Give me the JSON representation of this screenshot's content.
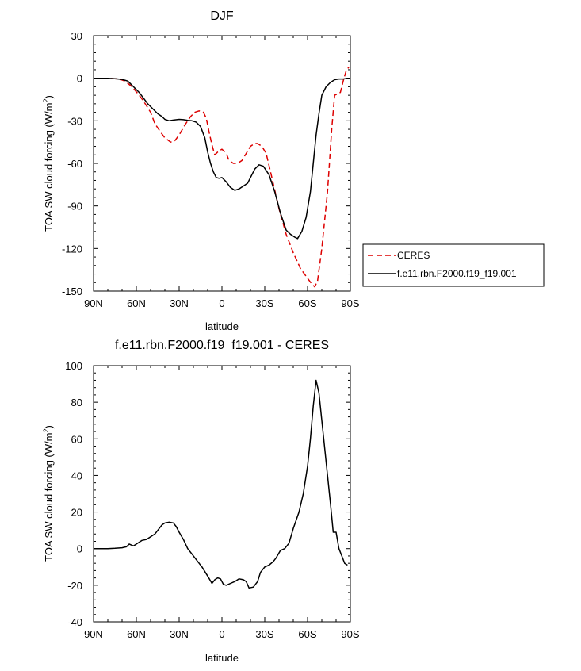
{
  "chart_data": [
    {
      "type": "line",
      "title": "DJF",
      "xlabel": "latitude",
      "ylabel": "TOA SW cloud forcing (W/m",
      "ylabel_sup": "2",
      "ylabel_end": ")",
      "xlim": [
        90,
        -90
      ],
      "ylim": [
        -150,
        30
      ],
      "xticks": [
        90,
        60,
        30,
        0,
        -30,
        -60,
        -90
      ],
      "xtick_labels": [
        "90N",
        "60N",
        "30N",
        "0",
        "30S",
        "60S",
        "90S"
      ],
      "yticks": [
        -150,
        -120,
        -90,
        -60,
        -30,
        0,
        30
      ],
      "ytick_labels": [
        "-150",
        "-120",
        "-90",
        "-60",
        "-30",
        "0",
        "30"
      ],
      "series": [
        {
          "name": "CERES",
          "color": "#dd0000",
          "dash": true,
          "x": [
            90,
            80,
            72,
            68,
            63,
            58,
            55,
            50,
            47,
            43,
            40,
            36,
            33,
            30,
            26,
            22,
            19,
            16,
            13,
            11,
            9,
            7,
            5,
            3,
            0,
            -1,
            -3,
            -5,
            -8,
            -11,
            -14,
            -17,
            -20,
            -23,
            -25,
            -28,
            -31,
            -35,
            -40,
            -45,
            -50,
            -55,
            -60,
            -63,
            -65,
            -67,
            -70,
            -74,
            -77,
            -79,
            -81,
            -83,
            -85,
            -87,
            -89
          ],
          "values": [
            0,
            0,
            -0.5,
            -2,
            -6,
            -12,
            -16,
            -24,
            -32,
            -38,
            -42,
            -45,
            -44,
            -40,
            -33,
            -27,
            -24,
            -23,
            -24,
            -28,
            -38,
            -47,
            -54,
            -52,
            -50,
            -51,
            -53,
            -58,
            -60,
            -60,
            -58,
            -53,
            -48,
            -46,
            -46,
            -48,
            -53,
            -70,
            -92,
            -110,
            -123,
            -134,
            -141,
            -145,
            -147,
            -143,
            -120,
            -80,
            -35,
            -12,
            -11,
            -10,
            -2,
            5,
            8
          ]
        },
        {
          "name": "f.e11.rbn.F2000.f19_f19.001",
          "color": "#000000",
          "dash": false,
          "x": [
            90,
            80,
            75,
            70,
            66,
            62,
            58,
            55,
            52,
            48,
            45,
            42,
            40,
            37,
            34,
            30,
            27,
            24,
            21,
            18,
            15,
            12,
            10,
            8,
            6,
            4,
            2,
            0,
            -3,
            -6,
            -9,
            -12,
            -15,
            -18,
            -21,
            -23,
            -26,
            -29,
            -33,
            -37,
            -41,
            -45,
            -48,
            -51,
            -53,
            -56,
            -59,
            -62,
            -64,
            -66,
            -68,
            -70,
            -73,
            -76,
            -79,
            -82,
            -85,
            -88,
            -90
          ],
          "values": [
            0,
            0,
            -0.3,
            -0.8,
            -2,
            -6,
            -10,
            -14,
            -18,
            -22,
            -25,
            -27,
            -29,
            -30,
            -29.5,
            -29,
            -29.2,
            -29.7,
            -30,
            -31,
            -34,
            -42,
            -52,
            -60,
            -66,
            -70,
            -70.5,
            -70,
            -73,
            -77,
            -79,
            -78,
            -76,
            -74,
            -68,
            -64,
            -61,
            -62,
            -68,
            -80,
            -95,
            -107,
            -110,
            -112,
            -113,
            -108,
            -98,
            -80,
            -60,
            -40,
            -25,
            -12,
            -6,
            -3,
            -1,
            -0.5,
            -0.5,
            0,
            0
          ]
        }
      ],
      "legend": {
        "position": "right",
        "entries": [
          "CERES",
          "f.e11.rbn.F2000.f19_f19.001"
        ]
      }
    },
    {
      "type": "line",
      "title": "f.e11.rbn.F2000.f19_f19.001 - CERES",
      "xlabel": "latitude",
      "ylabel": "TOA SW cloud forcing (W/m",
      "ylabel_sup": "2",
      "ylabel_end": ")",
      "xlim": [
        90,
        -90
      ],
      "ylim": [
        -40,
        100
      ],
      "xticks": [
        90,
        60,
        30,
        0,
        -30,
        -60,
        -90
      ],
      "xtick_labels": [
        "90N",
        "60N",
        "30N",
        "0",
        "30S",
        "60S",
        "90S"
      ],
      "yticks": [
        -40,
        -20,
        0,
        20,
        40,
        60,
        80,
        100
      ],
      "ytick_labels": [
        "-40",
        "-20",
        "0",
        "20",
        "40",
        "60",
        "80",
        "100"
      ],
      "series": [
        {
          "name": "f.e11.rbn.F2000.f19_f19.001 - CERES",
          "color": "#000000",
          "dash": false,
          "x": [
            90,
            80,
            75,
            70,
            67,
            65,
            62,
            59,
            56,
            53,
            50,
            47,
            44,
            42,
            40,
            37,
            34,
            32,
            30,
            27,
            24,
            21,
            18,
            14,
            10,
            7,
            5,
            3,
            1,
            -1,
            -3,
            -6,
            -9,
            -12,
            -15,
            -17,
            -19,
            -22,
            -25,
            -27,
            -30,
            -33,
            -36,
            -38,
            -41,
            -44,
            -47,
            -50,
            -54,
            -57,
            -60,
            -62,
            -64,
            -66,
            -68,
            -70,
            -72,
            -74,
            -76,
            -78,
            -80,
            -82,
            -84,
            -86,
            -88
          ],
          "values": [
            0,
            0,
            0.2,
            0.5,
            1,
            2.5,
            1.5,
            3,
            4.5,
            5,
            6.5,
            8,
            11,
            13,
            14,
            14.5,
            14,
            12,
            9,
            5,
            0,
            -3,
            -6,
            -10,
            -15,
            -19,
            -17,
            -16,
            -16.5,
            -19.5,
            -20,
            -19,
            -18,
            -16.5,
            -17,
            -18,
            -21.5,
            -21,
            -18,
            -13,
            -10,
            -9,
            -7,
            -5,
            -1,
            0,
            3,
            11,
            20,
            30,
            45,
            60,
            78,
            92,
            85,
            70,
            55,
            40,
            25,
            9,
            9,
            0,
            -4,
            -8,
            -9
          ]
        }
      ]
    }
  ]
}
